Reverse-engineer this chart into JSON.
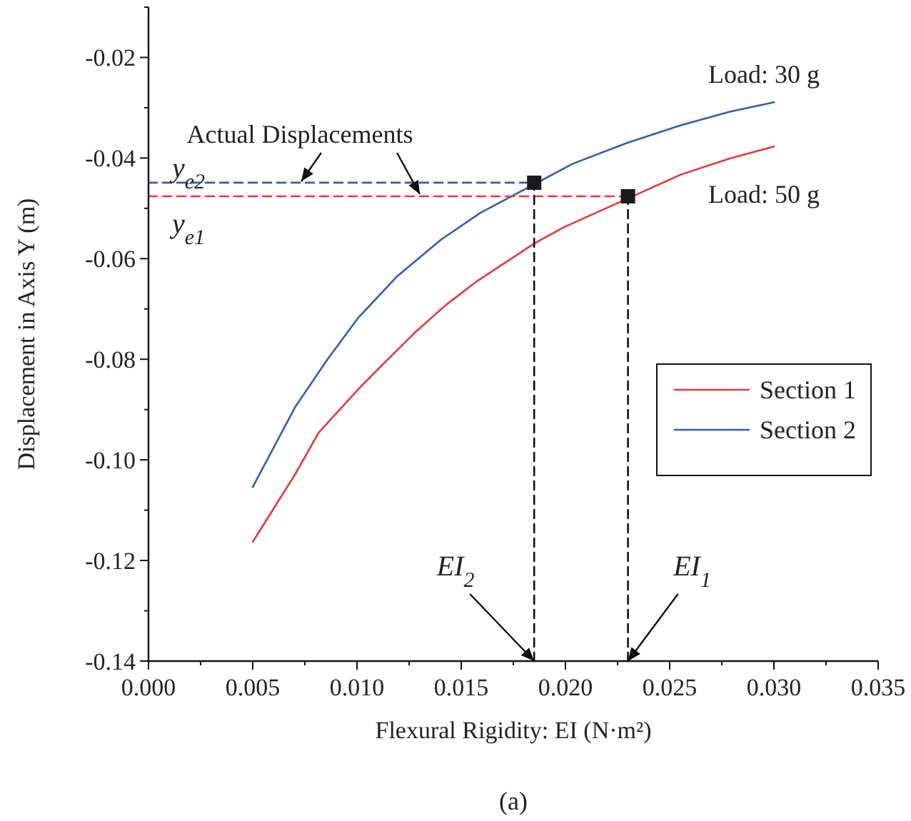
{
  "chart_data": {
    "type": "line",
    "xlabel": "Flexural Rigidity: EI     (N·m²)",
    "ylabel": "Displacement in Axis Y     (m)",
    "xlim": [
      0,
      0.035
    ],
    "xticks": [
      {
        "value": 0,
        "label": "0.000"
      },
      {
        "value": 0.005,
        "label": "0.005"
      },
      {
        "value": 0.01,
        "label": "0.010"
      },
      {
        "value": 0.015,
        "label": "0.015"
      },
      {
        "value": 0.02,
        "label": "0.020"
      },
      {
        "value": 0.025,
        "label": "0.025"
      },
      {
        "value": 0.03,
        "label": "0.030"
      },
      {
        "value": 0.035,
        "label": "0.035"
      }
    ],
    "ylim": [
      -0.14,
      -0.01
    ],
    "yticks": [
      -0.14,
      {
        "value": -0.13,
        "label": null
      },
      -0.12,
      {
        "value": -0.11,
        "label": null
      },
      {
        "value": -0.1,
        "label": "-0.10"
      },
      {
        "value": -0.09,
        "label": null
      },
      -0.08,
      {
        "value": -0.07,
        "label": null
      },
      -0.06,
      {
        "value": -0.05,
        "label": null
      },
      -0.04,
      {
        "value": -0.03,
        "label": null
      },
      -0.02,
      {
        "value": -0.01,
        "label": null
      }
    ],
    "grid": false,
    "legend": "right",
    "marker": "none",
    "line_style": "solid",
    "series": [
      {
        "name": "Section 1",
        "color": "#e8383d",
        "x": [
          0.005,
          0.007,
          0.00816,
          0.01005,
          0.01122,
          0.01275,
          0.01427,
          0.01568,
          0.0185,
          0.0199,
          0.02553,
          0.02788,
          0.03
        ],
        "values": [
          -0.1163,
          -0.1031,
          -0.0946,
          -0.086,
          -0.0811,
          -0.0748,
          -0.0692,
          -0.0647,
          -0.057,
          -0.0538,
          -0.0433,
          -0.0401,
          -0.0377
        ]
      },
      {
        "name": "Section 2",
        "color": "#2f5fb3",
        "x": [
          0.005,
          0.00705,
          0.00857,
          0.01005,
          0.01193,
          0.01404,
          0.01592,
          0.02037,
          0.02295,
          0.02553,
          0.02788,
          0.03
        ],
        "values": [
          -0.1054,
          -0.0894,
          -0.0801,
          -0.0718,
          -0.0635,
          -0.0562,
          -0.0509,
          -0.0411,
          -0.037,
          -0.0335,
          -0.0308,
          -0.0289
        ]
      },
      {
        "type": "line",
        "color": "#e8383d",
        "line_style": "dashed",
        "x": [
          0,
          0.023
        ],
        "values": [
          -0.0476,
          -0.0476
        ]
      },
      {
        "type": "line",
        "color": "#2f5fb3",
        "line_style": "dashed",
        "x": [
          0,
          0.0185
        ],
        "values": [
          -0.0449,
          -0.0449
        ]
      },
      {
        "type": "line",
        "color": "#111111",
        "line_style": "dashed",
        "x": [
          0.0185,
          0.0185
        ],
        "values": [
          -0.14,
          -0.0449
        ]
      },
      {
        "type": "line",
        "color": "#111111",
        "line_style": "dashed",
        "x": [
          0.023,
          0.023
        ],
        "values": [
          -0.14,
          -0.0476
        ]
      },
      {
        "type": "scatter",
        "color": "#1a1a1a",
        "marker": "square",
        "x": [
          0.0185,
          0.023
        ],
        "values": [
          -0.0449,
          -0.0476
        ]
      }
    ],
    "annotations": [
      "Actual Displacements",
      "Load:  30 g",
      "Load:  50 g",
      "y$_{e2}$",
      "y$_{e1}$",
      {
        "text": "EI$_{2}$",
        "x": 0.0185,
        "y": -0.14
      },
      {
        "text": "EI$_{1}$",
        "x": 0.023,
        "y": -0.14
      },
      "(a)"
    ]
  }
}
